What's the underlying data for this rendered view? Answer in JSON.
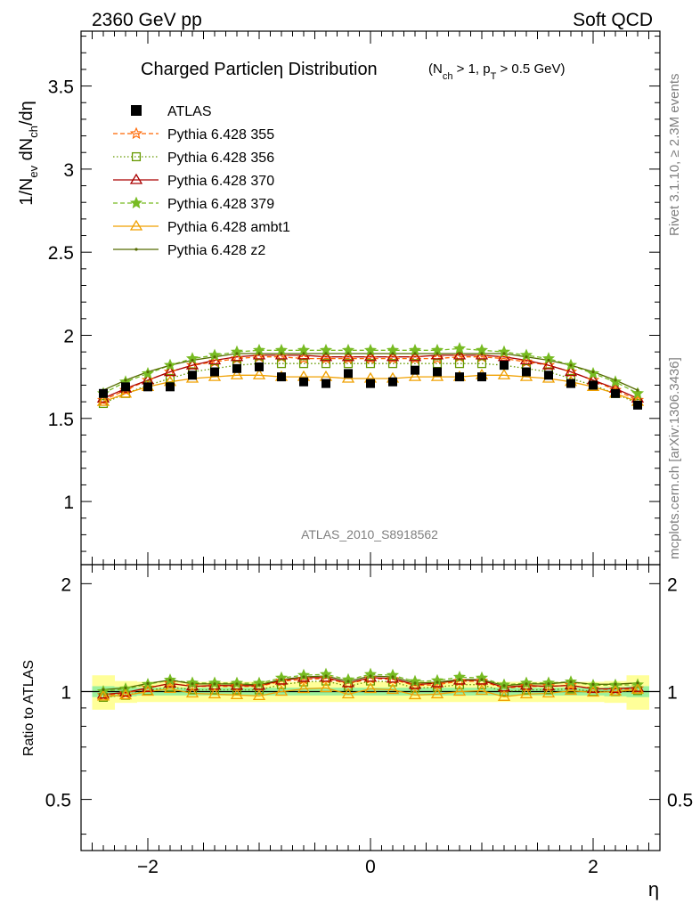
{
  "header": {
    "left": "2360 GeV pp",
    "right": "Soft QCD"
  },
  "side_labels": {
    "rivet": "Rivet 3.1.10, ≥ 2.3M events",
    "mcplots": "mcplots.cern.ch [arXiv:1306.3436]"
  },
  "chart_data": [
    {
      "type": "scatter",
      "title": "Charged Particleη Distribution",
      "title_sub": "(Nₑₕ > 1, pₜ > 0.5 GeV)",
      "title_sub_parts": {
        "n": "N",
        "nsub": "ch",
        "n_rest": " > 1, p",
        "psub": "T",
        "p_rest": " > 0.5 GeV)"
      },
      "ylabel": "1/N_ev dN_ch/dη",
      "ylabel_parts": {
        "a": "1/N",
        "a_sub": "ev",
        "b": " dN",
        "b_sub": "ch",
        "c": "/dη"
      },
      "xlabel": "η",
      "watermark": "ATLAS_2010_S8918562",
      "xlim": [
        -2.6,
        2.6
      ],
      "ylim": [
        0.62,
        3.83
      ],
      "y_ticks": [
        1,
        1.5,
        2,
        2.5,
        3,
        3.5
      ],
      "y_tick_labels": [
        "1",
        "1.5",
        "2",
        "2.5",
        "3",
        "3.5"
      ],
      "x_ticks": [
        -2,
        0,
        2
      ],
      "x_tick_labels": [
        "−2",
        "0",
        "2"
      ],
      "x": [
        -2.4,
        -2.2,
        -2.0,
        -1.8,
        -1.6,
        -1.4,
        -1.2,
        -1.0,
        -0.8,
        -0.6,
        -0.4,
        -0.2,
        0.0,
        0.2,
        0.4,
        0.6,
        0.8,
        1.0,
        1.2,
        1.4,
        1.6,
        1.8,
        2.0,
        2.2,
        2.4
      ],
      "legend_position": "top-left",
      "series": [
        {
          "name": "ATLAS",
          "color": "#000000",
          "marker": "square-filled",
          "line": "none",
          "values": [
            1.65,
            1.69,
            1.69,
            1.69,
            1.76,
            1.78,
            1.8,
            1.81,
            1.75,
            1.72,
            1.71,
            1.77,
            1.71,
            1.72,
            1.79,
            1.78,
            1.75,
            1.75,
            1.82,
            1.78,
            1.76,
            1.71,
            1.7,
            1.65,
            1.58
          ]
        },
        {
          "name": "Pythia 6.428 355",
          "color": "#ff6600",
          "marker": "star-open",
          "line": "dashed",
          "values": [
            1.61,
            1.67,
            1.73,
            1.78,
            1.82,
            1.84,
            1.86,
            1.87,
            1.87,
            1.86,
            1.86,
            1.86,
            1.86,
            1.86,
            1.86,
            1.86,
            1.87,
            1.87,
            1.86,
            1.84,
            1.82,
            1.78,
            1.73,
            1.67,
            1.61
          ]
        },
        {
          "name": "Pythia 6.428 356",
          "color": "#669900",
          "marker": "square-open",
          "line": "dotted",
          "values": [
            1.59,
            1.65,
            1.7,
            1.74,
            1.78,
            1.8,
            1.82,
            1.83,
            1.83,
            1.83,
            1.83,
            1.83,
            1.83,
            1.83,
            1.83,
            1.83,
            1.83,
            1.83,
            1.82,
            1.8,
            1.78,
            1.74,
            1.7,
            1.65,
            1.59
          ]
        },
        {
          "name": "Pythia 6.428 370",
          "color": "#aa0000",
          "marker": "triangle-open",
          "line": "solid",
          "values": [
            1.62,
            1.68,
            1.73,
            1.78,
            1.82,
            1.85,
            1.87,
            1.88,
            1.88,
            1.88,
            1.87,
            1.87,
            1.87,
            1.87,
            1.87,
            1.88,
            1.88,
            1.88,
            1.87,
            1.85,
            1.82,
            1.78,
            1.73,
            1.68,
            1.62
          ]
        },
        {
          "name": "Pythia 6.428 379",
          "color": "#77bb22",
          "marker": "star-filled",
          "line": "dashed",
          "values": [
            1.65,
            1.72,
            1.77,
            1.82,
            1.86,
            1.88,
            1.9,
            1.91,
            1.91,
            1.91,
            1.91,
            1.91,
            1.91,
            1.91,
            1.91,
            1.91,
            1.92,
            1.91,
            1.9,
            1.88,
            1.86,
            1.82,
            1.77,
            1.72,
            1.65
          ]
        },
        {
          "name": "Pythia 6.428 ambt1",
          "color": "#f0a000",
          "marker": "triangle-open",
          "line": "solid",
          "values": [
            1.6,
            1.65,
            1.69,
            1.72,
            1.74,
            1.75,
            1.76,
            1.76,
            1.75,
            1.75,
            1.75,
            1.74,
            1.74,
            1.74,
            1.75,
            1.75,
            1.75,
            1.76,
            1.76,
            1.75,
            1.74,
            1.72,
            1.69,
            1.65,
            1.6
          ]
        },
        {
          "name": "Pythia 6.428 z2",
          "color": "#556b00",
          "marker": "dot",
          "line": "solid",
          "values": [
            1.67,
            1.73,
            1.78,
            1.82,
            1.85,
            1.87,
            1.89,
            1.89,
            1.89,
            1.89,
            1.89,
            1.89,
            1.89,
            1.89,
            1.89,
            1.89,
            1.89,
            1.89,
            1.89,
            1.87,
            1.85,
            1.82,
            1.78,
            1.73,
            1.67
          ]
        }
      ]
    },
    {
      "type": "scatter",
      "ylabel": "Ratio to ATLAS",
      "xlabel": "η",
      "xlim": [
        -2.6,
        2.6
      ],
      "ylim": [
        0.36,
        2.26
      ],
      "y_ticks": [
        0.5,
        1,
        2
      ],
      "y_tick_labels": [
        "0.5",
        "1",
        "2"
      ],
      "x_ticks": [
        -2,
        0,
        2
      ],
      "x_tick_labels": [
        "−2",
        "0",
        "2"
      ],
      "reference_line": 1,
      "uncertainty_band_colors": {
        "inner": "#9cf19c",
        "outer": "#ffff99"
      },
      "band_inner_halfwidth": [
        0.035,
        0.03,
        0.025,
        0.025,
        0.025,
        0.025,
        0.025,
        0.025,
        0.025,
        0.025,
        0.025,
        0.025,
        0.025,
        0.025,
        0.025,
        0.025,
        0.025,
        0.025,
        0.025,
        0.025,
        0.025,
        0.025,
        0.025,
        0.03,
        0.035
      ],
      "band_outer_halfwidth": [
        0.11,
        0.07,
        0.065,
        0.065,
        0.065,
        0.065,
        0.065,
        0.065,
        0.065,
        0.065,
        0.065,
        0.065,
        0.065,
        0.065,
        0.065,
        0.065,
        0.065,
        0.065,
        0.065,
        0.065,
        0.065,
        0.065,
        0.065,
        0.07,
        0.11
      ]
    }
  ]
}
